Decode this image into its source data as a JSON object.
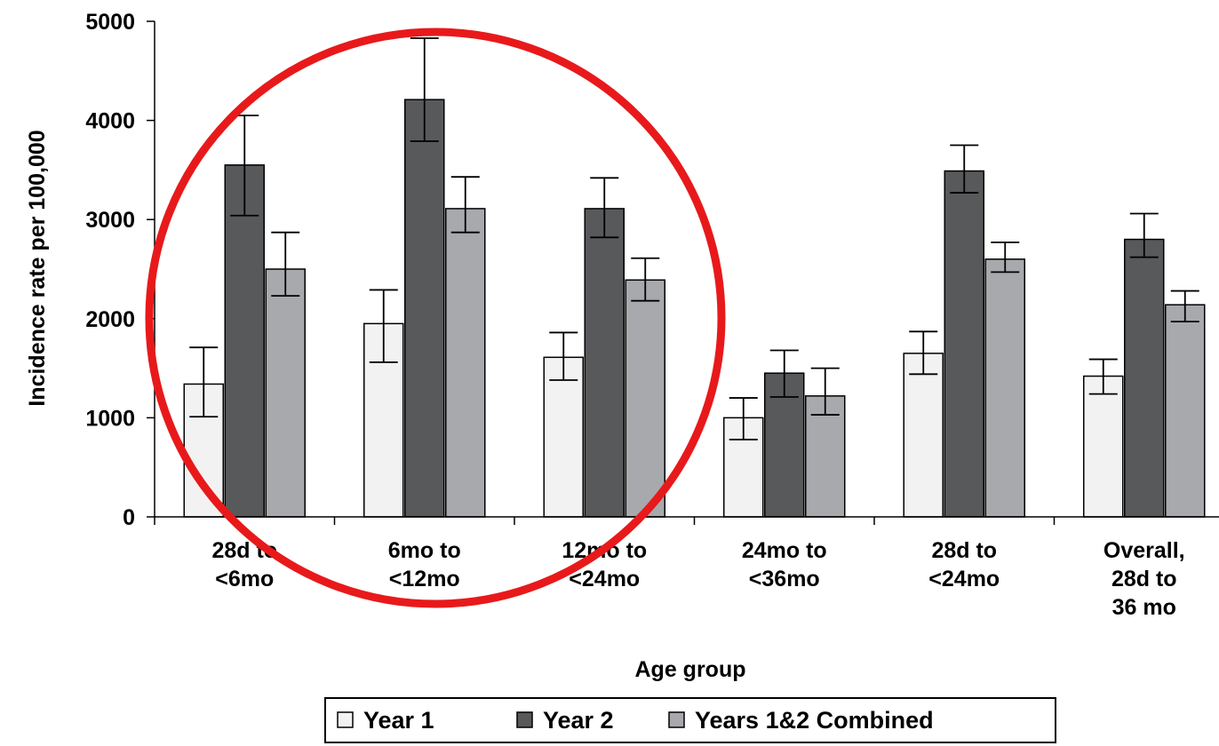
{
  "chart_data": {
    "type": "bar",
    "title": "",
    "xlabel": "Age group",
    "ylabel": "Incidence rate per 100,000",
    "ylim": [
      0,
      5000
    ],
    "yticks": [
      "0",
      "1000",
      "2000",
      "3000",
      "4000",
      "5000"
    ],
    "grid": false,
    "legend_position": "bottom-center",
    "categories": [
      [
        "28d to",
        "<6mo"
      ],
      [
        "6mo to",
        "<12mo"
      ],
      [
        "12mo to",
        "<24mo"
      ],
      [
        "24mo to",
        "<36mo"
      ],
      [
        "28d to",
        "<24mo"
      ],
      [
        "Overall,",
        "28d to",
        "36 mo"
      ]
    ],
    "series": [
      {
        "name": "Year 1",
        "color": "#f2f2f2",
        "values": [
          1340,
          1950,
          1610,
          1000,
          1650,
          1420
        ],
        "err_low": [
          1010,
          1560,
          1380,
          780,
          1440,
          1240
        ],
        "err_high": [
          1710,
          2290,
          1860,
          1200,
          1870,
          1590
        ]
      },
      {
        "name": "Year 2",
        "color": "#58595b",
        "values": [
          3550,
          4210,
          3110,
          1450,
          3490,
          2800
        ],
        "err_low": [
          3040,
          3790,
          2820,
          1210,
          3270,
          2620
        ],
        "err_high": [
          4050,
          4830,
          3420,
          1680,
          3750,
          3060
        ]
      },
      {
        "name": "Years 1&2 Combined",
        "color": "#a7a9ac",
        "values": [
          2500,
          3110,
          2390,
          1220,
          2600,
          2140
        ],
        "err_low": [
          2230,
          2870,
          2180,
          1030,
          2470,
          1970
        ],
        "err_high": [
          2870,
          3430,
          2610,
          1500,
          2770,
          2280
        ]
      }
    ],
    "annotation": {
      "shape": "circle",
      "color": "#e8191b",
      "highlights": [
        "28d to <6mo",
        "6mo to <12mo",
        "12mo to <24mo"
      ]
    }
  }
}
